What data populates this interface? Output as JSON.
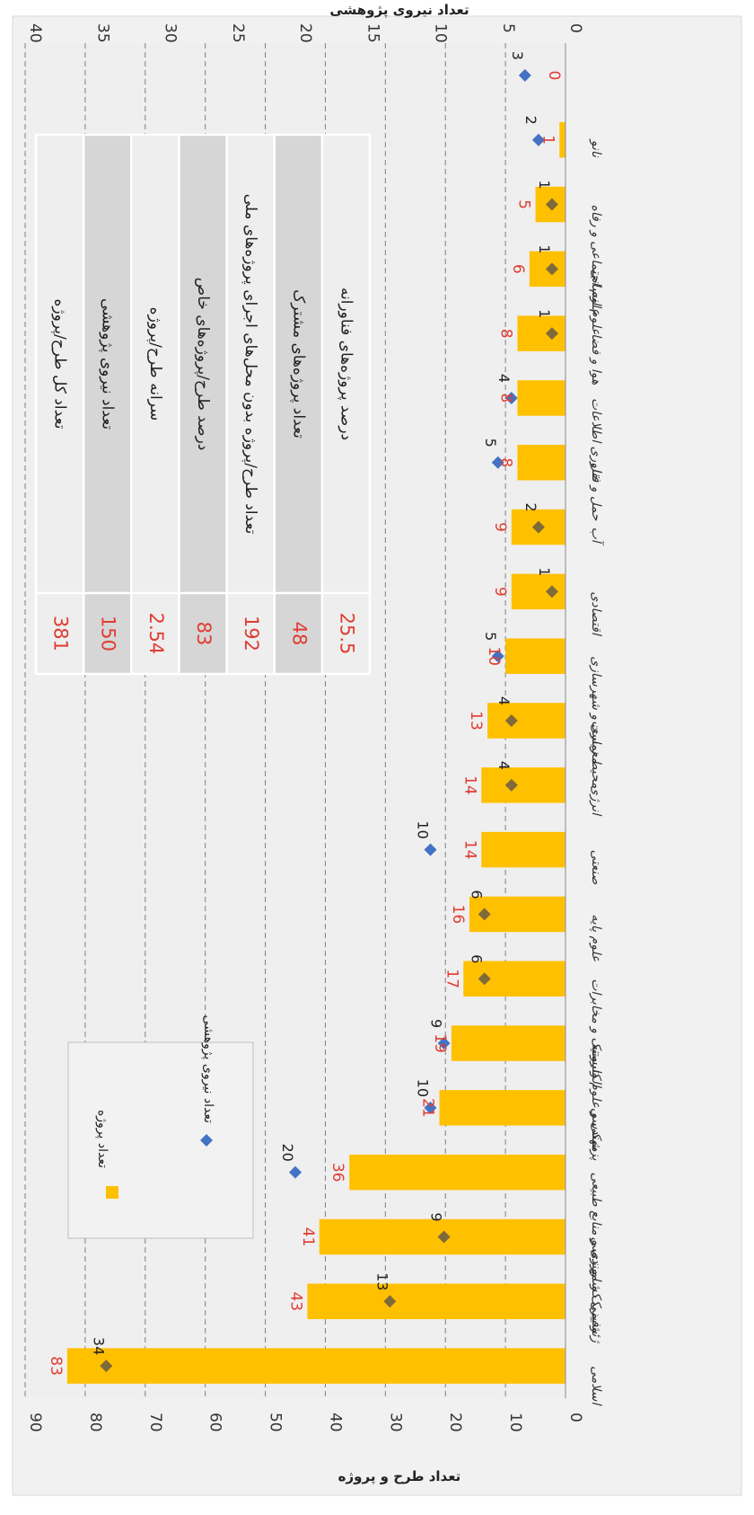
{
  "chart_data": {
    "type": "bar",
    "orientation": "rotated-90-clockwise",
    "left_axis": {
      "label": "تعداد طرح و پروژه",
      "ylim": [
        0,
        90
      ],
      "ticks": [
        0,
        10,
        20,
        30,
        40,
        50,
        60,
        70,
        80,
        90
      ]
    },
    "right_axis": {
      "label": "تعداد نیروی پژوهشی",
      "ylim": [
        0,
        40
      ],
      "ticks": [
        0,
        5,
        10,
        15,
        20,
        25,
        30,
        35,
        40
      ]
    },
    "categories": [
      "اسلامی",
      "شیمی",
      "ژئوفیزیک و مهندسی",
      "کشاورزی و منابع طبیعی",
      "مهندسی",
      "پزشکی و علوم وابسته",
      "الکترونیک و مخابرات",
      "علوم پایه",
      "صنعتی",
      "انرژی",
      "محیط زیست",
      "معماری و شهرسازی",
      "اقتصادی",
      "آب",
      "حمل و نقل",
      "فناوری اطلاعات",
      "هوا و فضا",
      "علوم انسانی",
      "علوم اجتماعی و رفاه",
      "نانو"
    ],
    "series": [
      {
        "name": "تعداد پروژه",
        "axis": "left",
        "kind": "bar",
        "color": "#ffc000",
        "values": [
          83,
          43,
          41,
          36,
          21,
          19,
          17,
          16,
          14,
          14,
          13,
          10,
          9,
          9,
          8,
          8,
          8,
          6,
          5,
          1
        ]
      },
      {
        "name": "تعداد نیروی پژوهشی",
        "axis": "right",
        "kind": "marker",
        "color": "#4472c4",
        "values": [
          34,
          13,
          9,
          20,
          10,
          9,
          6,
          6,
          10,
          4,
          4,
          5,
          1,
          2,
          5,
          4,
          1,
          1,
          1,
          2
        ]
      }
    ],
    "extra_point": {
      "bar_value": 0,
      "staff_value": 3,
      "category": ""
    },
    "legend": {
      "position": "top-left",
      "entries": [
        "تعداد پروژه",
        "تعداد نیروی پژوهشی"
      ]
    },
    "grid": true
  },
  "stats_table": [
    {
      "value": "381",
      "label": "تعداد کل طرح/پروژه"
    },
    {
      "value": "150",
      "label": "تعداد نیروی پژوهشی"
    },
    {
      "value": "2.54",
      "label": "سرانه طرح/پروژه"
    },
    {
      "value": "83",
      "label": "درصد طرح/پروژه‌های خاص"
    },
    {
      "value": "192",
      "label": "تعداد طرح/پروژه بدون محل‌های اجرای پروژه‌های ملی"
    },
    {
      "value": "48",
      "label": "تعداد پروژه‌های مشترک"
    },
    {
      "value": "25.5",
      "label": "درصد پروژه‌های فناورانه"
    }
  ],
  "colors": {
    "bar": "#ffc000",
    "marker": "#4472c4",
    "value_label": "#e03c31"
  }
}
